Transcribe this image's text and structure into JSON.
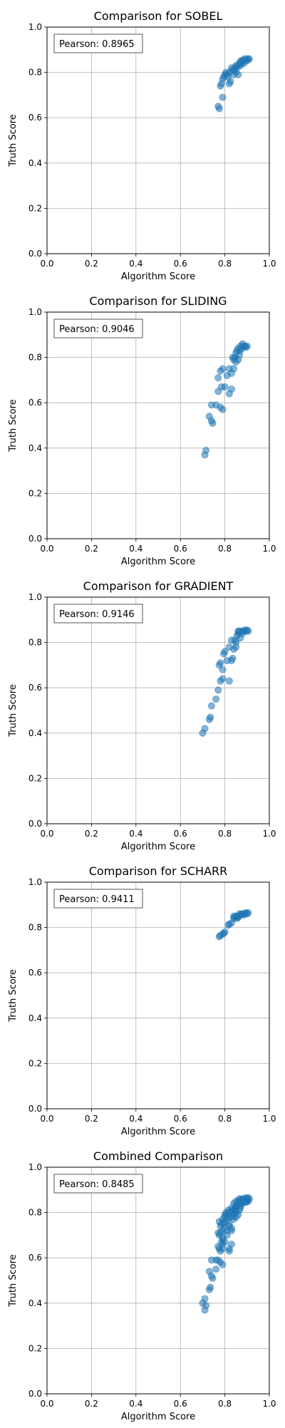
{
  "chart_data": [
    {
      "type": "scatter",
      "title": "Comparison for SOBEL",
      "xlabel": "Algorithm Score",
      "ylabel": "Truth Score",
      "xlim": [
        0.0,
        1.0
      ],
      "ylim": [
        0.0,
        1.0
      ],
      "xticks": [
        "0.0",
        "0.2",
        "0.4",
        "0.6",
        "0.8",
        "1.0"
      ],
      "yticks": [
        "0.0",
        "0.2",
        "0.4",
        "0.6",
        "0.8",
        "1.0"
      ],
      "grid": true,
      "annotation": "Pearson: 0.8965",
      "color": "#1f77b4",
      "points": [
        [
          0.77,
          0.65
        ],
        [
          0.775,
          0.64
        ],
        [
          0.78,
          0.74
        ],
        [
          0.785,
          0.75
        ],
        [
          0.79,
          0.69
        ],
        [
          0.79,
          0.77
        ],
        [
          0.795,
          0.78
        ],
        [
          0.8,
          0.79
        ],
        [
          0.805,
          0.8
        ],
        [
          0.81,
          0.79
        ],
        [
          0.815,
          0.78
        ],
        [
          0.82,
          0.8
        ],
        [
          0.82,
          0.75
        ],
        [
          0.825,
          0.76
        ],
        [
          0.83,
          0.82
        ],
        [
          0.835,
          0.81
        ],
        [
          0.84,
          0.81
        ],
        [
          0.845,
          0.82
        ],
        [
          0.85,
          0.8
        ],
        [
          0.85,
          0.83
        ],
        [
          0.855,
          0.82
        ],
        [
          0.86,
          0.83
        ],
        [
          0.865,
          0.84
        ],
        [
          0.87,
          0.83
        ],
        [
          0.87,
          0.85
        ],
        [
          0.875,
          0.84
        ],
        [
          0.88,
          0.85
        ],
        [
          0.885,
          0.84
        ],
        [
          0.89,
          0.86
        ],
        [
          0.895,
          0.85
        ],
        [
          0.9,
          0.86
        ],
        [
          0.905,
          0.855
        ],
        [
          0.91,
          0.86
        ],
        [
          0.86,
          0.79
        ],
        [
          0.84,
          0.79
        ],
        [
          0.88,
          0.855
        ]
      ]
    },
    {
      "type": "scatter",
      "title": "Comparison for SLIDING",
      "xlabel": "Algorithm Score",
      "ylabel": "Truth Score",
      "xlim": [
        0.0,
        1.0
      ],
      "ylim": [
        0.0,
        1.0
      ],
      "xticks": [
        "0.0",
        "0.2",
        "0.4",
        "0.6",
        "0.8",
        "1.0"
      ],
      "yticks": [
        "0.0",
        "0.2",
        "0.4",
        "0.6",
        "0.8",
        "1.0"
      ],
      "grid": true,
      "annotation": "Pearson: 0.9046",
      "color": "#1f77b4",
      "points": [
        [
          0.71,
          0.37
        ],
        [
          0.715,
          0.39
        ],
        [
          0.73,
          0.54
        ],
        [
          0.74,
          0.52
        ],
        [
          0.745,
          0.51
        ],
        [
          0.74,
          0.59
        ],
        [
          0.76,
          0.59
        ],
        [
          0.77,
          0.71
        ],
        [
          0.77,
          0.65
        ],
        [
          0.78,
          0.58
        ],
        [
          0.785,
          0.67
        ],
        [
          0.79,
          0.57
        ],
        [
          0.78,
          0.74
        ],
        [
          0.79,
          0.75
        ],
        [
          0.8,
          0.67
        ],
        [
          0.81,
          0.72
        ],
        [
          0.82,
          0.75
        ],
        [
          0.82,
          0.64
        ],
        [
          0.83,
          0.66
        ],
        [
          0.83,
          0.73
        ],
        [
          0.835,
          0.8
        ],
        [
          0.84,
          0.79
        ],
        [
          0.845,
          0.8
        ],
        [
          0.85,
          0.82
        ],
        [
          0.85,
          0.78
        ],
        [
          0.855,
          0.83
        ],
        [
          0.86,
          0.84
        ],
        [
          0.86,
          0.79
        ],
        [
          0.865,
          0.81
        ],
        [
          0.87,
          0.85
        ],
        [
          0.875,
          0.84
        ],
        [
          0.88,
          0.86
        ],
        [
          0.885,
          0.85
        ],
        [
          0.89,
          0.85
        ],
        [
          0.895,
          0.845
        ],
        [
          0.9,
          0.85
        ],
        [
          0.84,
          0.75
        ],
        [
          0.87,
          0.83
        ]
      ]
    },
    {
      "type": "scatter",
      "title": "Comparison for GRADIENT",
      "xlabel": "Algorithm Score",
      "ylabel": "Truth Score",
      "xlim": [
        0.0,
        1.0
      ],
      "ylim": [
        0.0,
        1.0
      ],
      "xticks": [
        "0.0",
        "0.2",
        "0.4",
        "0.6",
        "0.8",
        "1.0"
      ],
      "yticks": [
        "0.0",
        "0.2",
        "0.4",
        "0.6",
        "0.8",
        "1.0"
      ],
      "grid": true,
      "annotation": "Pearson: 0.9146",
      "color": "#1f77b4",
      "points": [
        [
          0.7,
          0.4
        ],
        [
          0.71,
          0.42
        ],
        [
          0.73,
          0.46
        ],
        [
          0.735,
          0.47
        ],
        [
          0.74,
          0.52
        ],
        [
          0.76,
          0.55
        ],
        [
          0.77,
          0.59
        ],
        [
          0.775,
          0.7
        ],
        [
          0.78,
          0.71
        ],
        [
          0.78,
          0.63
        ],
        [
          0.79,
          0.64
        ],
        [
          0.79,
          0.68
        ],
        [
          0.795,
          0.75
        ],
        [
          0.8,
          0.76
        ],
        [
          0.81,
          0.72
        ],
        [
          0.82,
          0.63
        ],
        [
          0.82,
          0.78
        ],
        [
          0.83,
          0.72
        ],
        [
          0.835,
          0.73
        ],
        [
          0.84,
          0.77
        ],
        [
          0.845,
          0.81
        ],
        [
          0.85,
          0.8
        ],
        [
          0.85,
          0.78
        ],
        [
          0.855,
          0.83
        ],
        [
          0.86,
          0.84
        ],
        [
          0.865,
          0.85
        ],
        [
          0.87,
          0.82
        ],
        [
          0.875,
          0.85
        ],
        [
          0.88,
          0.84
        ],
        [
          0.885,
          0.85
        ],
        [
          0.89,
          0.855
        ],
        [
          0.895,
          0.85
        ],
        [
          0.9,
          0.855
        ],
        [
          0.905,
          0.85
        ],
        [
          0.86,
          0.85
        ],
        [
          0.83,
          0.81
        ]
      ]
    },
    {
      "type": "scatter",
      "title": "Comparison for SCHARR",
      "xlabel": "Algorithm Score",
      "ylabel": "Truth Score",
      "xlim": [
        0.0,
        1.0
      ],
      "ylim": [
        0.0,
        1.0
      ],
      "xticks": [
        "0.0",
        "0.2",
        "0.4",
        "0.6",
        "0.8",
        "1.0"
      ],
      "yticks": [
        "0.0",
        "0.2",
        "0.4",
        "0.6",
        "0.8",
        "1.0"
      ],
      "grid": true,
      "annotation": "Pearson: 0.9411",
      "color": "#1f77b4",
      "points": [
        [
          0.775,
          0.76
        ],
        [
          0.78,
          0.765
        ],
        [
          0.79,
          0.77
        ],
        [
          0.795,
          0.775
        ],
        [
          0.8,
          0.78
        ],
        [
          0.815,
          0.81
        ],
        [
          0.82,
          0.815
        ],
        [
          0.83,
          0.82
        ],
        [
          0.84,
          0.84
        ],
        [
          0.845,
          0.845
        ],
        [
          0.85,
          0.85
        ],
        [
          0.855,
          0.84
        ],
        [
          0.86,
          0.85
        ],
        [
          0.865,
          0.86
        ],
        [
          0.87,
          0.855
        ],
        [
          0.875,
          0.86
        ],
        [
          0.88,
          0.86
        ],
        [
          0.885,
          0.855
        ],
        [
          0.89,
          0.86
        ],
        [
          0.895,
          0.865
        ],
        [
          0.9,
          0.86
        ],
        [
          0.905,
          0.865
        ],
        [
          0.84,
          0.85
        ],
        [
          0.86,
          0.845
        ]
      ]
    },
    {
      "type": "scatter",
      "title": "Combined Comparison",
      "xlabel": "Algorithm Score",
      "ylabel": "Truth Score",
      "xlim": [
        0.0,
        1.0
      ],
      "ylim": [
        0.0,
        1.0
      ],
      "xticks": [
        "0.0",
        "0.2",
        "0.4",
        "0.6",
        "0.8",
        "1.0"
      ],
      "yticks": [
        "0.0",
        "0.2",
        "0.4",
        "0.6",
        "0.8",
        "1.0"
      ],
      "grid": true,
      "annotation": "Pearson: 0.8485",
      "color": "#1f77b4",
      "points": [
        [
          0.7,
          0.4
        ],
        [
          0.71,
          0.37
        ],
        [
          0.71,
          0.42
        ],
        [
          0.715,
          0.39
        ],
        [
          0.73,
          0.46
        ],
        [
          0.73,
          0.54
        ],
        [
          0.735,
          0.47
        ],
        [
          0.74,
          0.52
        ],
        [
          0.74,
          0.59
        ],
        [
          0.745,
          0.51
        ],
        [
          0.76,
          0.55
        ],
        [
          0.76,
          0.59
        ],
        [
          0.77,
          0.59
        ],
        [
          0.77,
          0.65
        ],
        [
          0.77,
          0.71
        ],
        [
          0.775,
          0.64
        ],
        [
          0.775,
          0.7
        ],
        [
          0.775,
          0.76
        ],
        [
          0.78,
          0.58
        ],
        [
          0.78,
          0.63
        ],
        [
          0.78,
          0.71
        ],
        [
          0.78,
          0.74
        ],
        [
          0.785,
          0.67
        ],
        [
          0.785,
          0.75
        ],
        [
          0.79,
          0.57
        ],
        [
          0.79,
          0.64
        ],
        [
          0.79,
          0.68
        ],
        [
          0.79,
          0.69
        ],
        [
          0.79,
          0.77
        ],
        [
          0.795,
          0.75
        ],
        [
          0.8,
          0.67
        ],
        [
          0.8,
          0.76
        ],
        [
          0.8,
          0.78
        ],
        [
          0.805,
          0.8
        ],
        [
          0.81,
          0.72
        ],
        [
          0.81,
          0.79
        ],
        [
          0.815,
          0.81
        ],
        [
          0.82,
          0.63
        ],
        [
          0.82,
          0.64
        ],
        [
          0.82,
          0.75
        ],
        [
          0.82,
          0.78
        ],
        [
          0.82,
          0.8
        ],
        [
          0.83,
          0.66
        ],
        [
          0.83,
          0.72
        ],
        [
          0.83,
          0.73
        ],
        [
          0.83,
          0.81
        ],
        [
          0.83,
          0.82
        ],
        [
          0.835,
          0.8
        ],
        [
          0.84,
          0.77
        ],
        [
          0.84,
          0.79
        ],
        [
          0.84,
          0.81
        ],
        [
          0.84,
          0.84
        ],
        [
          0.845,
          0.81
        ],
        [
          0.845,
          0.82
        ],
        [
          0.85,
          0.78
        ],
        [
          0.85,
          0.8
        ],
        [
          0.85,
          0.82
        ],
        [
          0.85,
          0.83
        ],
        [
          0.85,
          0.85
        ],
        [
          0.855,
          0.83
        ],
        [
          0.86,
          0.79
        ],
        [
          0.86,
          0.84
        ],
        [
          0.86,
          0.85
        ],
        [
          0.865,
          0.81
        ],
        [
          0.865,
          0.86
        ],
        [
          0.87,
          0.82
        ],
        [
          0.87,
          0.83
        ],
        [
          0.87,
          0.85
        ],
        [
          0.875,
          0.84
        ],
        [
          0.875,
          0.86
        ],
        [
          0.88,
          0.84
        ],
        [
          0.88,
          0.86
        ],
        [
          0.885,
          0.85
        ],
        [
          0.89,
          0.85
        ],
        [
          0.89,
          0.86
        ],
        [
          0.895,
          0.845
        ],
        [
          0.895,
          0.865
        ],
        [
          0.9,
          0.85
        ],
        [
          0.9,
          0.855
        ],
        [
          0.905,
          0.85
        ],
        [
          0.905,
          0.865
        ],
        [
          0.91,
          0.86
        ],
        [
          0.8,
          0.79
        ],
        [
          0.79,
          0.72
        ],
        [
          0.81,
          0.77
        ],
        [
          0.82,
          0.74
        ],
        [
          0.8,
          0.73
        ],
        [
          0.83,
          0.78
        ],
        [
          0.81,
          0.7
        ],
        [
          0.79,
          0.66
        ]
      ]
    }
  ]
}
